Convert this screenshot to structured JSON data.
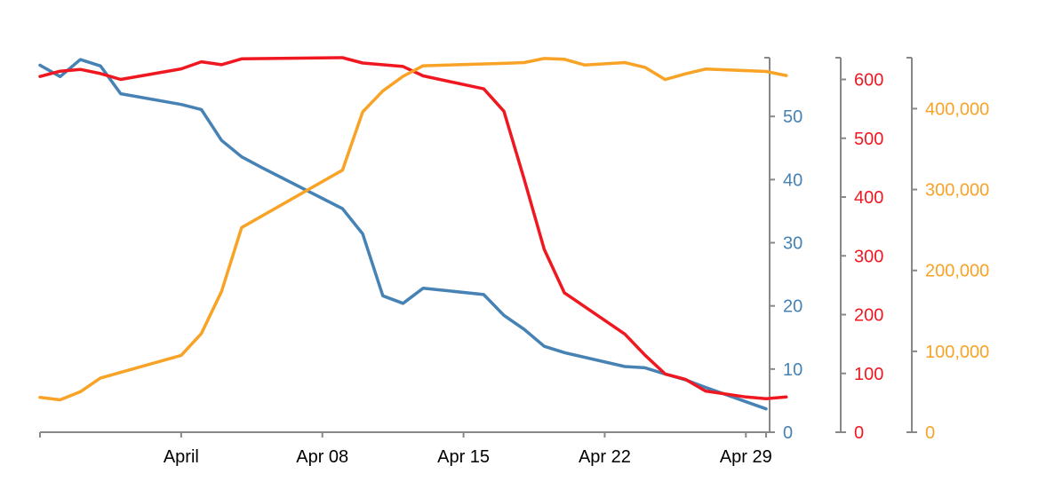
{
  "chart_data": {
    "type": "line",
    "x_axis": {
      "range": [
        "2020-03-25",
        "2020-04-30"
      ],
      "ticks": [
        {
          "date": "2020-04-01",
          "label": "April"
        },
        {
          "date": "2020-04-08",
          "label": "Apr 08"
        },
        {
          "date": "2020-04-15",
          "label": "Apr 15"
        },
        {
          "date": "2020-04-22",
          "label": "Apr 22"
        },
        {
          "date": "2020-04-29",
          "label": "Apr 29"
        }
      ]
    },
    "y_axes": [
      {
        "id": "blue",
        "position": "right-1",
        "color": "#4682b4",
        "range": [
          0,
          59.3
        ],
        "ticks": [
          0,
          10,
          20,
          30,
          40,
          50
        ],
        "tick_labels": [
          "0",
          "10",
          "20",
          "30",
          "40",
          "50"
        ]
      },
      {
        "id": "red",
        "position": "right-2",
        "color": "#f01820",
        "range": [
          0,
          637
        ],
        "ticks": [
          0,
          100,
          200,
          300,
          400,
          500,
          600
        ],
        "tick_labels": [
          "0",
          "100",
          "200",
          "300",
          "400",
          "500",
          "600"
        ]
      },
      {
        "id": "orange",
        "position": "right-3",
        "color": "#f8a326",
        "range": [
          0,
          463000
        ],
        "ticks": [
          0,
          100000,
          200000,
          300000,
          400000
        ],
        "tick_labels": [
          "0",
          "100,000",
          "200,000",
          "300,000",
          "400,000"
        ]
      }
    ],
    "series": [
      {
        "axis": "blue",
        "color": "#4682b4",
        "points": [
          [
            "2020-03-25",
            58.1
          ],
          [
            "2020-03-26",
            56.3
          ],
          [
            "2020-03-27",
            59.0
          ],
          [
            "2020-03-28",
            58.0
          ],
          [
            "2020-03-29",
            53.6
          ],
          [
            "2020-04-01",
            51.9
          ],
          [
            "2020-04-02",
            51.1
          ],
          [
            "2020-04-03",
            46.2
          ],
          [
            "2020-04-04",
            43.6
          ],
          [
            "2020-04-05",
            41.9
          ],
          [
            "2020-04-09",
            35.4
          ],
          [
            "2020-04-10",
            31.4
          ],
          [
            "2020-04-11",
            21.6
          ],
          [
            "2020-04-12",
            20.4
          ],
          [
            "2020-04-13",
            22.8
          ],
          [
            "2020-04-16",
            21.8
          ],
          [
            "2020-04-17",
            18.5
          ],
          [
            "2020-04-18",
            16.3
          ],
          [
            "2020-04-19",
            13.6
          ],
          [
            "2020-04-20",
            12.6
          ],
          [
            "2020-04-23",
            10.4
          ],
          [
            "2020-04-24",
            10.2
          ],
          [
            "2020-04-25",
            9.2
          ],
          [
            "2020-04-26",
            8.3
          ],
          [
            "2020-04-27",
            7.1
          ],
          [
            "2020-04-30",
            3.7
          ]
        ]
      },
      {
        "axis": "red",
        "color": "#f01820",
        "points": [
          [
            "2020-03-25",
            605
          ],
          [
            "2020-03-26",
            614
          ],
          [
            "2020-03-27",
            617
          ],
          [
            "2020-03-28",
            610
          ],
          [
            "2020-03-29",
            600
          ],
          [
            "2020-04-01",
            618
          ],
          [
            "2020-04-02",
            630
          ],
          [
            "2020-04-03",
            625
          ],
          [
            "2020-04-04",
            635
          ],
          [
            "2020-04-09",
            637
          ],
          [
            "2020-04-10",
            628
          ],
          [
            "2020-04-12",
            622
          ],
          [
            "2020-04-13",
            606
          ],
          [
            "2020-04-16",
            584
          ],
          [
            "2020-04-17",
            546
          ],
          [
            "2020-04-18",
            431
          ],
          [
            "2020-04-19",
            311
          ],
          [
            "2020-04-20",
            237
          ],
          [
            "2020-04-23",
            167
          ],
          [
            "2020-04-24",
            131
          ],
          [
            "2020-04-25",
            99
          ],
          [
            "2020-04-26",
            90
          ],
          [
            "2020-04-27",
            70
          ],
          [
            "2020-04-29",
            60
          ],
          [
            "2020-04-30",
            57
          ],
          [
            "2020-05-01",
            60
          ]
        ]
      },
      {
        "axis": "orange",
        "color": "#f8a326",
        "points": [
          [
            "2020-03-25",
            43000
          ],
          [
            "2020-03-26",
            40000
          ],
          [
            "2020-03-27",
            50000
          ],
          [
            "2020-03-28",
            67000
          ],
          [
            "2020-03-29",
            74000
          ],
          [
            "2020-04-01",
            95000
          ],
          [
            "2020-04-02",
            122000
          ],
          [
            "2020-04-03",
            174000
          ],
          [
            "2020-04-04",
            253000
          ],
          [
            "2020-04-09",
            324000
          ],
          [
            "2020-04-10",
            396000
          ],
          [
            "2020-04-11",
            422000
          ],
          [
            "2020-04-12",
            440000
          ],
          [
            "2020-04-13",
            453000
          ],
          [
            "2020-04-17",
            456000
          ],
          [
            "2020-04-18",
            457000
          ],
          [
            "2020-04-19",
            462000
          ],
          [
            "2020-04-20",
            461000
          ],
          [
            "2020-04-21",
            454000
          ],
          [
            "2020-04-23",
            457000
          ],
          [
            "2020-04-24",
            451000
          ],
          [
            "2020-04-25",
            436000
          ],
          [
            "2020-04-26",
            443000
          ],
          [
            "2020-04-27",
            449000
          ],
          [
            "2020-04-30",
            446000
          ],
          [
            "2020-05-01",
            441000
          ]
        ]
      }
    ]
  }
}
